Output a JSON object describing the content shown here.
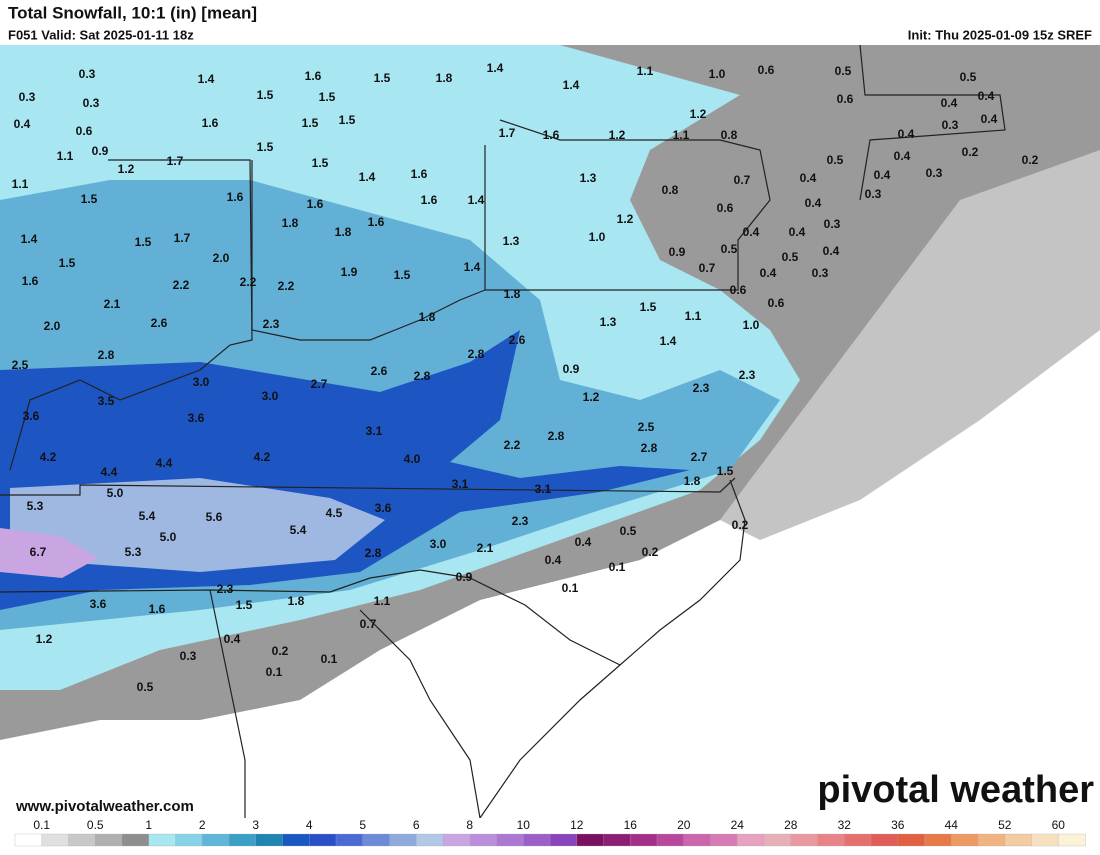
{
  "header": {
    "title": "Total Snowfall, 10:1 (in) [mean]",
    "subtitle": "F051 Valid: Sat 2025-01-11 18z",
    "init": "Init: Thu 2025-01-09 15z SREF"
  },
  "map": {
    "labels": [
      "0.3",
      "0.3",
      "0.3",
      "0.4",
      "0.6",
      "0.9",
      "1.1",
      "1.1",
      "1.2",
      "1.5",
      "1.7",
      "1.6",
      "1.4",
      "1.5",
      "1.6",
      "1.5",
      "1.5",
      "1.8",
      "1.4",
      "1.6",
      "1.5",
      "1.5",
      "1.5",
      "1.5",
      "1.4",
      "1.6",
      "1.6",
      "1.8",
      "1.8",
      "1.6",
      "1.6",
      "1.4",
      "1.4",
      "1.1",
      "1.0",
      "0.6",
      "0.5",
      "0.6",
      "1.2",
      "1.7",
      "1.6",
      "1.2",
      "1.1",
      "0.8",
      "0.5",
      "0.4",
      "0.4",
      "0.3",
      "0.4",
      "0.4",
      "0.5",
      "0.4",
      "0.2",
      "0.4",
      "0.3",
      "0.2",
      "0.4",
      "0.7",
      "0.8",
      "1.3",
      "0.6",
      "0.3",
      "0.4",
      "1.4",
      "1.5",
      "1.7",
      "2.0",
      "1.5",
      "1.6",
      "2.2",
      "2.2",
      "2.2",
      "1.9",
      "1.5",
      "1.4",
      "1.3",
      "1.2",
      "1.0",
      "0.4",
      "0.4",
      "0.3",
      "0.5",
      "0.5",
      "0.4",
      "0.9",
      "0.7",
      "0.4",
      "0.3",
      "2.1",
      "2.0",
      "2.6",
      "2.3",
      "1.8",
      "0.6",
      "0.6",
      "1.8",
      "1.5",
      "1.3",
      "1.1",
      "1.0",
      "1.4",
      "2.6",
      "2.8",
      "2.5",
      "2.8",
      "2.6",
      "2.8",
      "2.7",
      "3.0",
      "0.9",
      "3.5",
      "3.0",
      "1.2",
      "2.3",
      "2.3",
      "3.6",
      "3.6",
      "3.1",
      "2.5",
      "2.8",
      "2.2",
      "2.8",
      "4.2",
      "4.4",
      "4.2",
      "4.0",
      "2.7",
      "1.5",
      "4.4",
      "5.0",
      "3.1",
      "3.1",
      "1.8",
      "5.3",
      "5.4",
      "5.6",
      "4.5",
      "3.6",
      "5.4",
      "5.0",
      "2.3",
      "0.2",
      "0.5",
      "0.4",
      "6.7",
      "5.3",
      "2.8",
      "3.0",
      "2.1",
      "0.4",
      "0.2",
      "0.1",
      "0.9",
      "0.1",
      "2.3",
      "3.6",
      "1.6",
      "1.5",
      "1.8",
      "1.1",
      "0.7",
      "1.2",
      "0.4",
      "0.3",
      "0.2",
      "0.1",
      "0.1",
      "0.5"
    ]
  },
  "footer": {
    "website": "www.pivotalweather.com",
    "brand": "pivotal weather"
  },
  "colorbar": {
    "ticks": [
      "0.1",
      "0.5",
      "1",
      "2",
      "3",
      "4",
      "5",
      "6",
      "8",
      "10",
      "12",
      "16",
      "20",
      "24",
      "28",
      "32",
      "36",
      "44",
      "52",
      "60"
    ],
    "colors": [
      "#ffffff",
      "#e0e0e0",
      "#c8c8c8",
      "#b0b0b0",
      "#8e8e8e",
      "#a6e7f2",
      "#86d3e8",
      "#5fb7d8",
      "#3b9fc8",
      "#1f84b0",
      "#1858c0",
      "#2a4fc8",
      "#4a6ad4",
      "#6c8ad8",
      "#8eaadc",
      "#b0c8e6",
      "#c9a6e2",
      "#bb8fdb",
      "#ac78d2",
      "#9c5fc8",
      "#8a44bc",
      "#7a1060",
      "#8c1f74",
      "#a33088",
      "#b8489c",
      "#cc64ae",
      "#d87cb8",
      "#e8a2c0",
      "#e7b0b8",
      "#e89aa0",
      "#e88488",
      "#e67070",
      "#e05c58",
      "#e06040",
      "#e87a48",
      "#ee9a62",
      "#f0b482",
      "#f4cca2",
      "#f7e0c0",
      "#fbf2d8"
    ]
  }
}
